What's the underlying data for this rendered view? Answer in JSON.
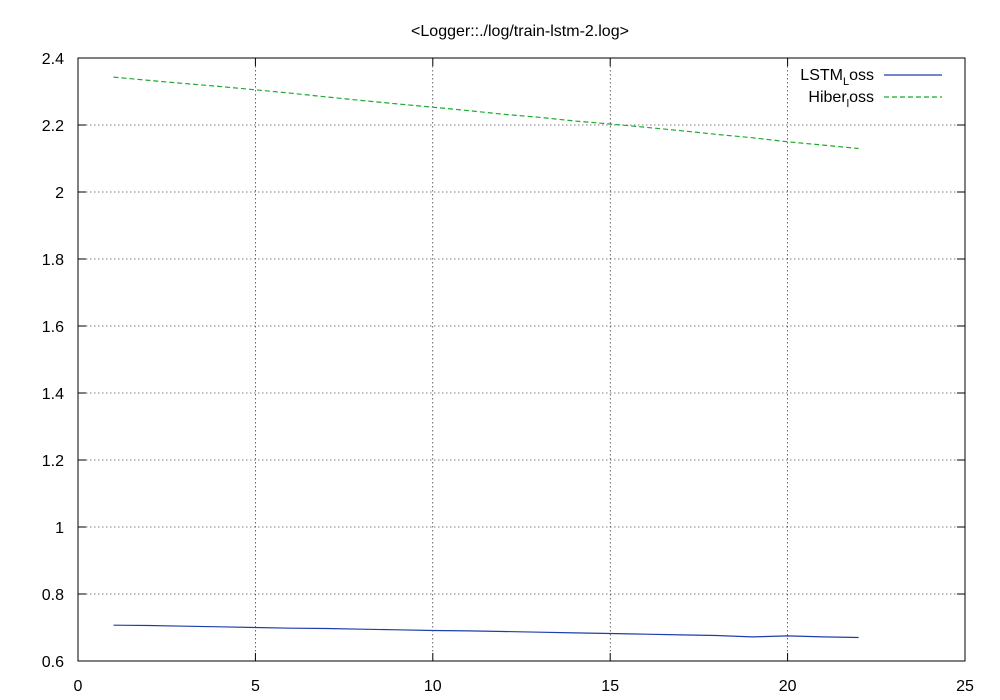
{
  "chart_data": {
    "type": "line",
    "title": "<Logger::./log/train-lstm-2.log>",
    "xlabel": "",
    "ylabel": "",
    "xlim": [
      0,
      25
    ],
    "ylim": [
      0.6,
      2.4
    ],
    "xticks": [
      0,
      5,
      10,
      15,
      20,
      25
    ],
    "yticks": [
      0.6,
      0.8,
      1,
      1.2,
      1.4,
      1.6,
      1.8,
      2,
      2.2,
      2.4
    ],
    "grid": true,
    "legend_position": "top-right",
    "x": [
      1,
      2,
      3,
      4,
      5,
      6,
      7,
      8,
      9,
      10,
      11,
      12,
      13,
      14,
      15,
      16,
      17,
      18,
      19,
      20,
      21,
      22
    ],
    "series": [
      {
        "legend_main": "LSTM",
        "legend_sub": "L",
        "legend_tail": "oss",
        "color": "#1f3fa8",
        "dash": "solid",
        "values": [
          0.707,
          0.706,
          0.704,
          0.702,
          0.7,
          0.698,
          0.697,
          0.695,
          0.693,
          0.691,
          0.69,
          0.688,
          0.686,
          0.684,
          0.682,
          0.68,
          0.678,
          0.676,
          0.672,
          0.675,
          0.672,
          0.67
        ]
      },
      {
        "legend_main": "Hiber",
        "legend_sub": "l",
        "legend_tail": "oss",
        "color": "#1faa2f",
        "dash": "dashed",
        "values": [
          2.343,
          2.333,
          2.324,
          2.315,
          2.305,
          2.295,
          2.284,
          2.273,
          2.263,
          2.253,
          2.243,
          2.232,
          2.223,
          2.212,
          2.203,
          2.193,
          2.183,
          2.172,
          2.162,
          2.15,
          2.14,
          2.13
        ]
      }
    ]
  }
}
